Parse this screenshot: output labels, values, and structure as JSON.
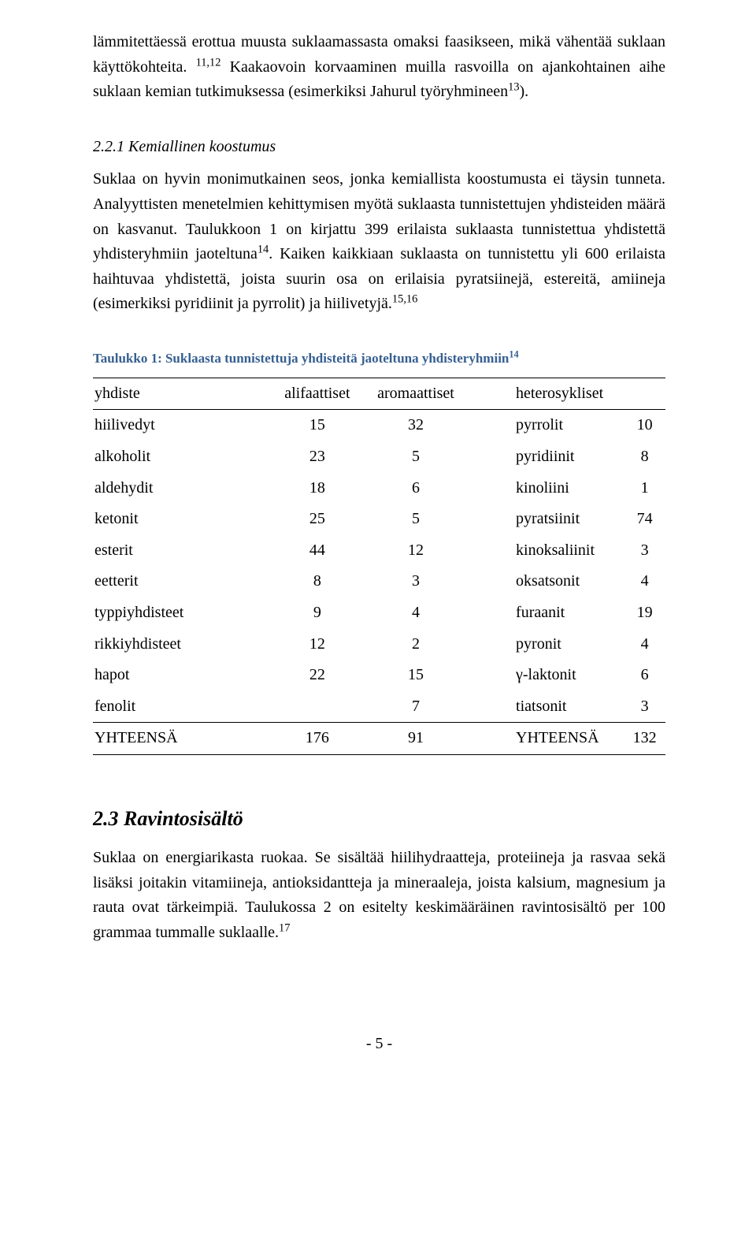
{
  "paragraphs": {
    "p1a": "lämmitettäessä erottua muusta suklaamassasta omaksi faasikseen, mikä vähentää suklaan käyttökohteita.",
    "p1b_sup": "11,12",
    "p1c": " Kaakaovoin korvaaminen muilla rasvoilla on ajankohtainen aihe suklaan kemian tutkimuksessa (esimerkiksi Jahurul työryhmineen",
    "p1d_sup": "13",
    "p1e": ").",
    "p2": "Suklaa on hyvin monimutkainen seos, jonka kemiallista koostumusta ei täysin tunneta. Analyyttisten menetelmien kehittymisen myötä suklaasta tunnistettujen yhdisteiden määrä on kasvanut. Taulukkoon 1 on kirjattu 399 erilaista suklaasta tunnistettua yhdistettä yhdisteryhmiin jaoteltuna",
    "p2_sup": "14",
    "p2b": ". Kaiken kaikkiaan suklaasta on tunnistettu yli 600 erilaista haihtuvaa yhdistettä, joista suurin osa on erilaisia pyratsiinejä, estereitä, amiineja (esimerkiksi pyridiinit ja pyrrolit) ja hiilivetyjä.",
    "p2c_sup": "15,16",
    "p3": "Suklaa on energiarikasta ruokaa. Se sisältää hiilihydraatteja, proteiineja ja rasvaa sekä lisäksi joitakin vitamiineja, antioksidantteja ja mineraaleja, joista kalsium, magnesium ja rauta ovat tärkeimpiä. Taulukossa 2 on esitelty keskimääräinen ravintosisältö per 100 grammaa tummalle suklaalle.",
    "p3_sup": "17"
  },
  "headings": {
    "sub1": "2.2.1 Kemiallinen koostumus",
    "sec1": "2.3 Ravintosisältö"
  },
  "table": {
    "caption_text": "Taulukko 1: Suklaasta tunnistettuja yhdisteitä jaoteltuna yhdisteryhmiin",
    "caption_sup": "14",
    "headers": [
      "yhdiste",
      "alifaattiset",
      "aromaattiset",
      "heterosykliset"
    ],
    "rows": [
      {
        "c1": "hiilivedyt",
        "c2": "15",
        "c3": "32",
        "c4": "pyrrolit",
        "c5": "10"
      },
      {
        "c1": "alkoholit",
        "c2": "23",
        "c3": "5",
        "c4": "pyridiinit",
        "c5": "8"
      },
      {
        "c1": "aldehydit",
        "c2": "18",
        "c3": "6",
        "c4": "kinoliini",
        "c5": "1"
      },
      {
        "c1": "ketonit",
        "c2": "25",
        "c3": "5",
        "c4": "pyratsiinit",
        "c5": "74"
      },
      {
        "c1": "esterit",
        "c2": "44",
        "c3": "12",
        "c4": "kinoksaliinit",
        "c5": "3"
      },
      {
        "c1": "eetterit",
        "c2": "8",
        "c3": "3",
        "c4": "oksatsonit",
        "c5": "4"
      },
      {
        "c1": "typpiyhdisteet",
        "c2": "9",
        "c3": "4",
        "c4": "furaanit",
        "c5": "19"
      },
      {
        "c1": "rikkiyhdisteet",
        "c2": "12",
        "c3": "2",
        "c4": "pyronit",
        "c5": "4"
      },
      {
        "c1": "hapot",
        "c2": "22",
        "c3": "15",
        "c4": "γ-laktonit",
        "c5": "6"
      },
      {
        "c1": "fenolit",
        "c2": "",
        "c3": "7",
        "c4": "tiatsonit",
        "c5": "3"
      }
    ],
    "totals": {
      "c1": "YHTEENSÄ",
      "c2": "176",
      "c3": "91",
      "c4": "YHTEENSÄ",
      "c5": "132"
    }
  },
  "footer": "- 5 -",
  "colors": {
    "caption": "#365f91",
    "text": "#000000",
    "background": "#ffffff"
  }
}
